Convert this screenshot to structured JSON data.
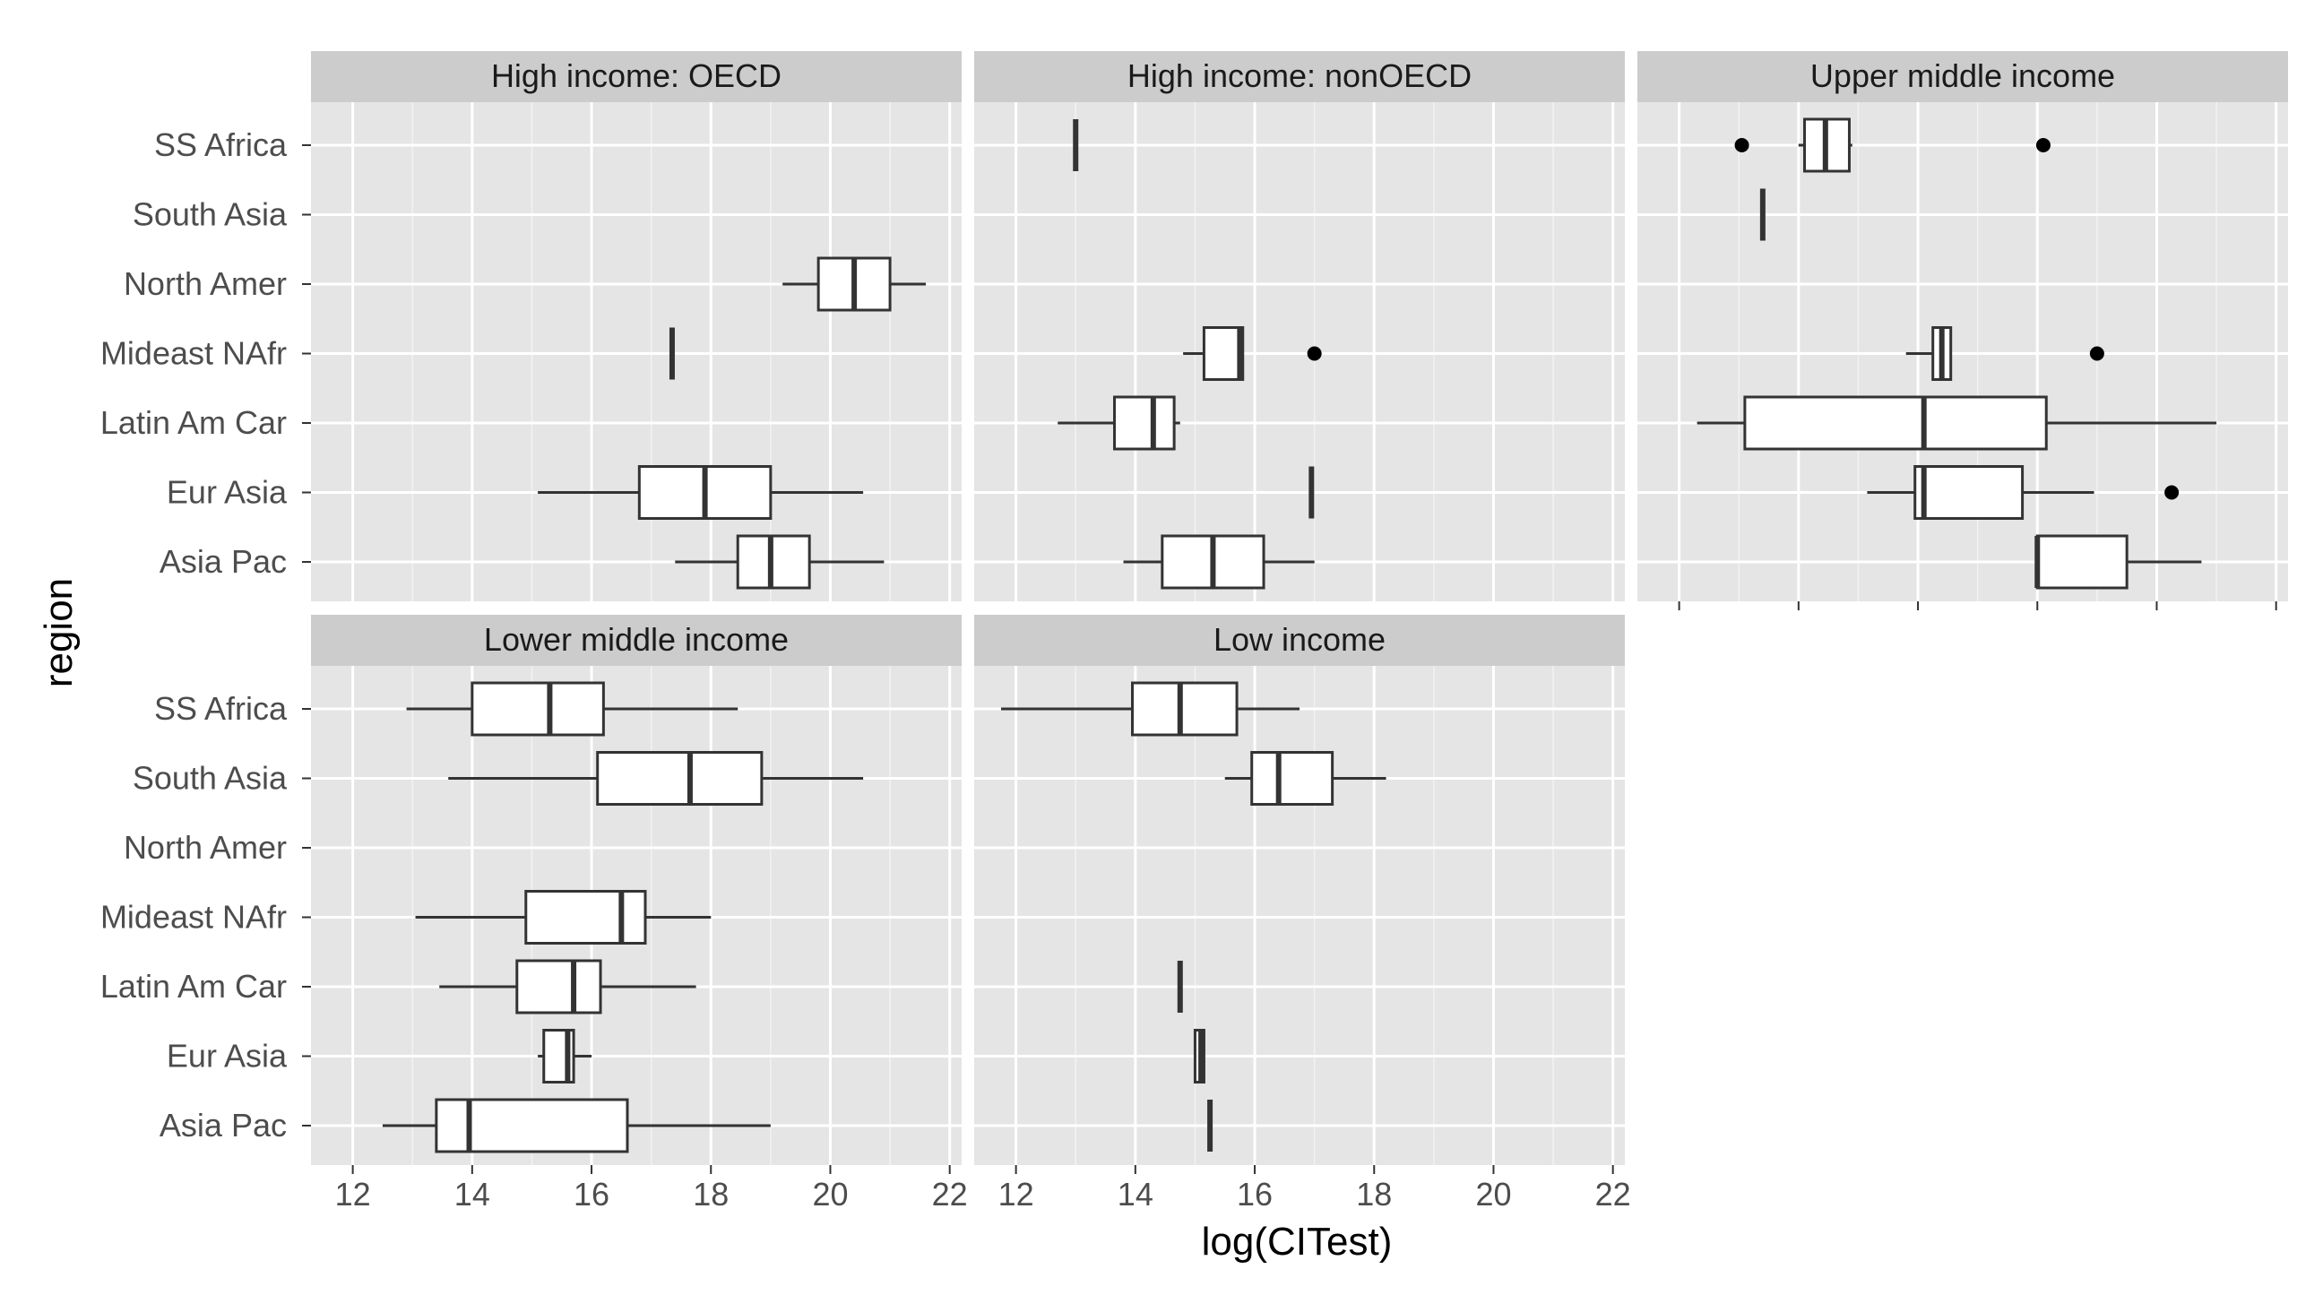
{
  "chart_data": {
    "type": "boxplot",
    "xlabel": "log(CITest)",
    "ylabel": "region",
    "xlim": [
      11.3,
      22.2
    ],
    "x_ticks": [
      "12",
      "14",
      "16",
      "18",
      "20",
      "22"
    ],
    "x_tick_values": [
      12,
      14,
      16,
      18,
      20,
      22
    ],
    "grid": true,
    "regions": [
      "SS Africa",
      "South Asia",
      "North Amer",
      "Mideast NAfr",
      "Latin Am Car",
      "Eur Asia",
      "Asia Pac"
    ],
    "panels": [
      {
        "title": "High income: OECD",
        "boxes": [
          {
            "region": "North Amer",
            "lo": 19.2,
            "q1": 19.8,
            "med": 20.4,
            "q3": 21.0,
            "hi": 21.6,
            "outliers": []
          },
          {
            "region": "Mideast NAfr",
            "lo": 17.35,
            "q1": 17.35,
            "med": 17.35,
            "q3": 17.35,
            "hi": 17.35,
            "outliers": []
          },
          {
            "region": "Eur Asia",
            "lo": 15.1,
            "q1": 16.8,
            "med": 17.9,
            "q3": 19.0,
            "hi": 20.55,
            "outliers": []
          },
          {
            "region": "Asia Pac",
            "lo": 17.4,
            "q1": 18.45,
            "med": 19.0,
            "q3": 19.65,
            "hi": 20.9,
            "outliers": []
          }
        ]
      },
      {
        "title": "High income: nonOECD",
        "boxes": [
          {
            "region": "SS Africa",
            "lo": 13.0,
            "q1": 13.0,
            "med": 13.0,
            "q3": 13.0,
            "hi": 13.0,
            "outliers": []
          },
          {
            "region": "Mideast NAfr",
            "lo": 14.8,
            "q1": 15.15,
            "med": 15.75,
            "q3": 15.8,
            "hi": 15.8,
            "outliers": [
              17.0
            ]
          },
          {
            "region": "Latin Am Car",
            "lo": 12.7,
            "q1": 13.65,
            "med": 14.3,
            "q3": 14.65,
            "hi": 14.75,
            "outliers": []
          },
          {
            "region": "Eur Asia",
            "lo": 16.95,
            "q1": 16.95,
            "med": 16.95,
            "q3": 16.95,
            "hi": 16.95,
            "outliers": []
          },
          {
            "region": "Asia Pac",
            "lo": 13.8,
            "q1": 14.45,
            "med": 15.3,
            "q3": 16.15,
            "hi": 17.0,
            "outliers": []
          }
        ]
      },
      {
        "title": "Upper middle income",
        "boxes": [
          {
            "region": "SS Africa",
            "lo": 14.0,
            "q1": 14.1,
            "med": 14.45,
            "q3": 14.85,
            "hi": 14.9,
            "outliers": [
              13.05,
              18.1
            ]
          },
          {
            "region": "South Asia",
            "lo": 13.4,
            "q1": 13.4,
            "med": 13.4,
            "q3": 13.4,
            "hi": 13.4,
            "outliers": []
          },
          {
            "region": "Mideast NAfr",
            "lo": 15.8,
            "q1": 16.25,
            "med": 16.4,
            "q3": 16.55,
            "hi": 16.55,
            "outliers": [
              19.0
            ]
          },
          {
            "region": "Latin Am Car",
            "lo": 12.3,
            "q1": 13.1,
            "med": 16.1,
            "q3": 18.15,
            "hi": 21.0,
            "outliers": []
          },
          {
            "region": "Eur Asia",
            "lo": 15.15,
            "q1": 15.95,
            "med": 16.1,
            "q3": 17.75,
            "hi": 18.95,
            "outliers": [
              20.25
            ]
          },
          {
            "region": "Asia Pac",
            "lo": 18.0,
            "q1": 18.0,
            "med": 18.0,
            "q3": 19.5,
            "hi": 20.75,
            "outliers": []
          }
        ]
      },
      {
        "title": "Lower middle income",
        "boxes": [
          {
            "region": "SS Africa",
            "lo": 12.9,
            "q1": 14.0,
            "med": 15.3,
            "q3": 16.2,
            "hi": 18.45,
            "outliers": []
          },
          {
            "region": "South Asia",
            "lo": 13.6,
            "q1": 16.1,
            "med": 17.65,
            "q3": 18.85,
            "hi": 20.55,
            "outliers": []
          },
          {
            "region": "Mideast NAfr",
            "lo": 13.05,
            "q1": 14.9,
            "med": 16.5,
            "q3": 16.9,
            "hi": 18.0,
            "outliers": []
          },
          {
            "region": "Latin Am Car",
            "lo": 13.45,
            "q1": 14.75,
            "med": 15.7,
            "q3": 16.15,
            "hi": 17.75,
            "outliers": []
          },
          {
            "region": "Eur Asia",
            "lo": 15.1,
            "q1": 15.2,
            "med": 15.6,
            "q3": 15.7,
            "hi": 16.0,
            "outliers": []
          },
          {
            "region": "Asia Pac",
            "lo": 12.5,
            "q1": 13.4,
            "med": 13.95,
            "q3": 16.6,
            "hi": 19.0,
            "outliers": []
          }
        ]
      },
      {
        "title": "Low income",
        "boxes": [
          {
            "region": "SS Africa",
            "lo": 11.75,
            "q1": 13.95,
            "med": 14.75,
            "q3": 15.7,
            "hi": 16.75,
            "outliers": []
          },
          {
            "region": "South Asia",
            "lo": 15.5,
            "q1": 15.95,
            "med": 16.4,
            "q3": 17.3,
            "hi": 18.2,
            "outliers": []
          },
          {
            "region": "Latin Am Car",
            "lo": 14.75,
            "q1": 14.75,
            "med": 14.75,
            "q3": 14.75,
            "hi": 14.75,
            "outliers": []
          },
          {
            "region": "Eur Asia",
            "lo": 15.0,
            "q1": 15.0,
            "med": 15.1,
            "q3": 15.15,
            "hi": 15.15,
            "outliers": []
          },
          {
            "region": "Asia Pac",
            "lo": 15.25,
            "q1": 15.25,
            "med": 15.25,
            "q3": 15.25,
            "hi": 15.25,
            "outliers": []
          }
        ]
      }
    ]
  }
}
